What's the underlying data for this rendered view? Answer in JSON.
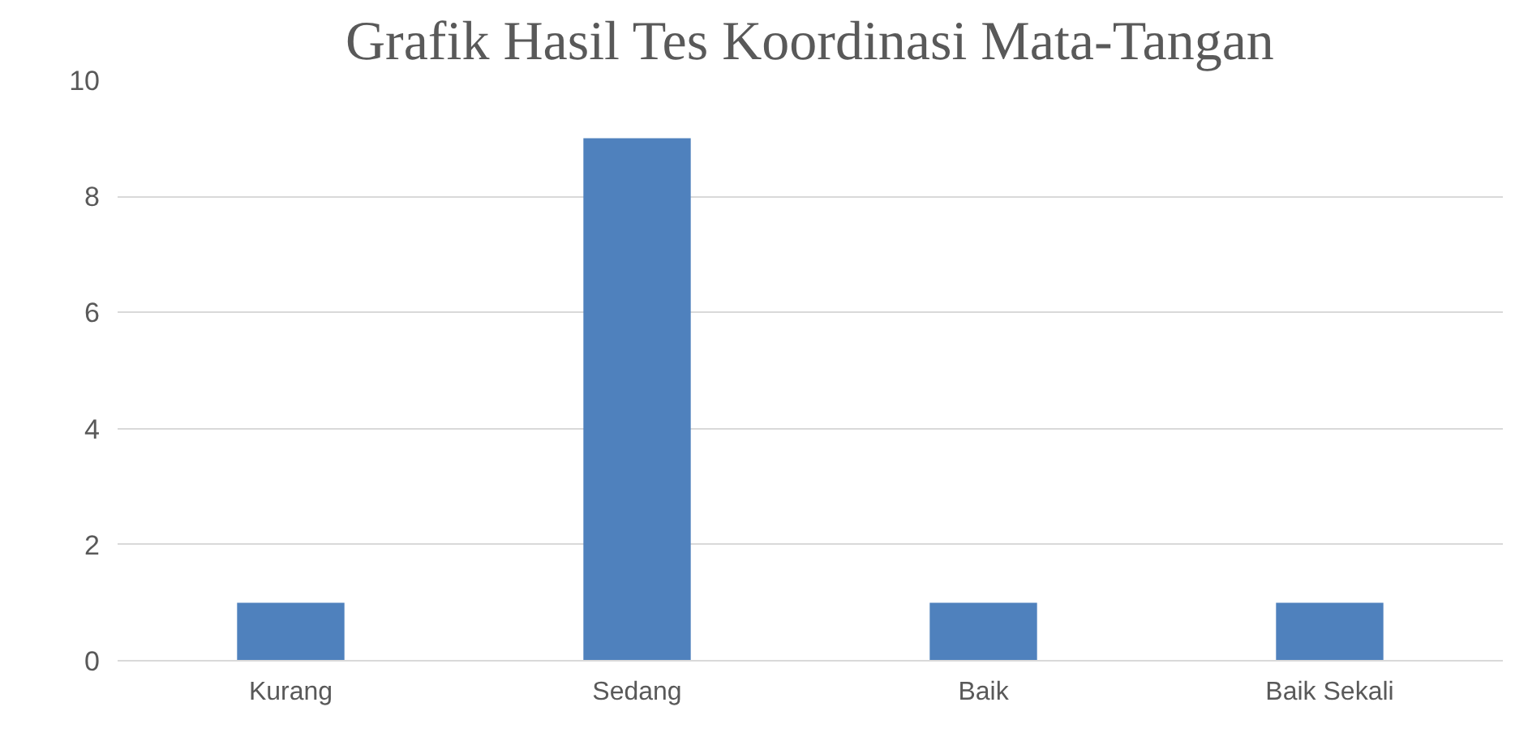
{
  "chart_data": {
    "type": "bar",
    "title": "Grafik Hasil Tes Koordinasi Mata-Tangan",
    "categories": [
      "Kurang",
      "Sedang",
      "Baik",
      "Baik Sekali"
    ],
    "values": [
      1,
      9,
      1,
      1
    ],
    "color": "#4f81bd",
    "ylim": [
      0,
      10
    ],
    "yticks": [
      0,
      2,
      4,
      6,
      8,
      10
    ],
    "grid": "y"
  }
}
